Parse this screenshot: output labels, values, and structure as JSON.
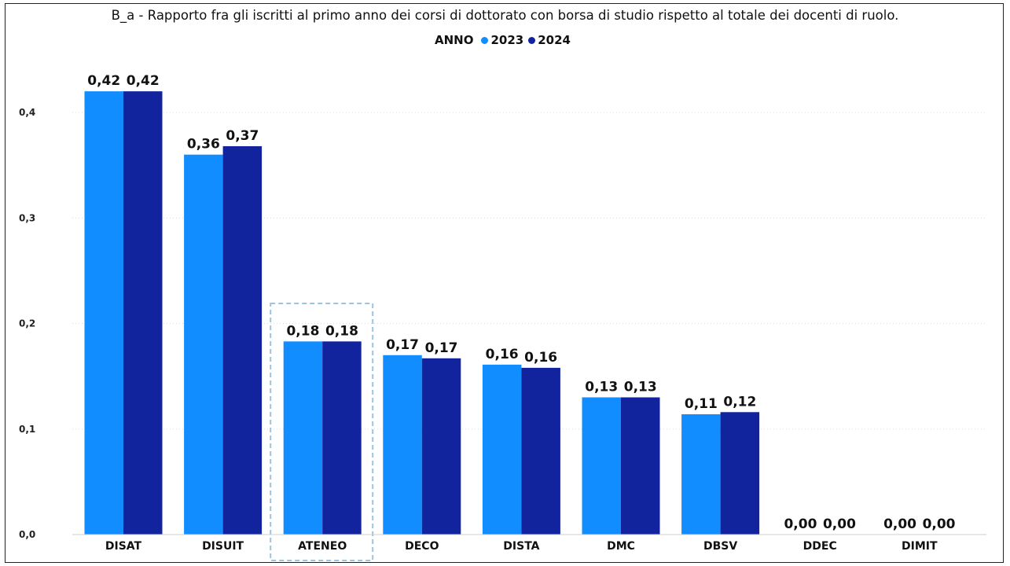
{
  "chart_data": {
    "type": "bar",
    "title": "B_a - Rapporto fra gli iscritti al primo anno dei corsi di dottorato con borsa di studio rispetto al totale dei docenti di ruolo.",
    "legend_title": "ANNO",
    "legend_position": "top-center",
    "categories": [
      "DISAT",
      "DISUIT",
      "ATENEO",
      "DECO",
      "DISTA",
      "DMC",
      "DBSV",
      "DDEC",
      "DIMIT"
    ],
    "series": [
      {
        "name": "2023",
        "color": "#118DFF",
        "values": [
          0.42,
          0.36,
          0.183,
          0.17,
          0.161,
          0.13,
          0.114,
          0.0,
          0.0
        ],
        "labels": [
          "0,42",
          "0,36",
          "0,18",
          "0,17",
          "0,16",
          "0,13",
          "0,11",
          "0,00",
          "0,00"
        ]
      },
      {
        "name": "2024",
        "color": "#12239E",
        "values": [
          0.42,
          0.368,
          0.183,
          0.167,
          0.158,
          0.13,
          0.116,
          0.0,
          0.0
        ],
        "labels": [
          "0,42",
          "0,37",
          "0,18",
          "0,17",
          "0,16",
          "0,13",
          "0,12",
          "0,00",
          "0,00"
        ]
      }
    ],
    "y_ticks": [
      {
        "value": 0.0,
        "label": "0,0"
      },
      {
        "value": 0.1,
        "label": "0,1"
      },
      {
        "value": 0.2,
        "label": "0,2"
      },
      {
        "value": 0.3,
        "label": "0,3"
      },
      {
        "value": 0.4,
        "label": "0,4"
      }
    ],
    "ylim": [
      0,
      0.4
    ],
    "grid": true,
    "highlighted_category": "ATENEO"
  }
}
